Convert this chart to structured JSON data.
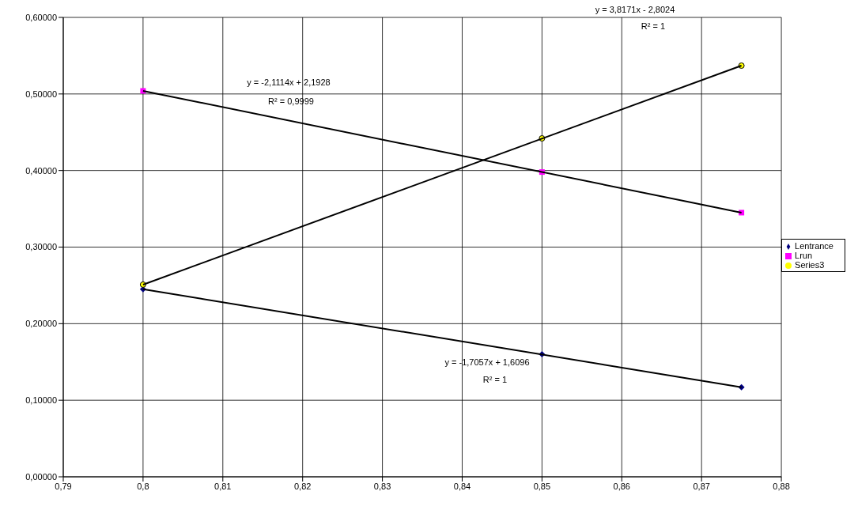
{
  "chart_data": {
    "type": "scatter",
    "xlim": [
      0.79,
      0.88
    ],
    "xticks": [
      {
        "value": 0.79,
        "label": "0,79"
      },
      {
        "value": 0.8,
        "label": "0,8"
      },
      {
        "value": 0.81,
        "label": "0,81"
      },
      {
        "value": 0.82,
        "label": "0,82"
      },
      {
        "value": 0.83,
        "label": "0,83"
      },
      {
        "value": 0.84,
        "label": "0,84"
      },
      {
        "value": 0.85,
        "label": "0,85"
      },
      {
        "value": 0.86,
        "label": "0,86"
      },
      {
        "value": 0.87,
        "label": "0,87"
      },
      {
        "value": 0.88,
        "label": "0,88"
      }
    ],
    "ylim": [
      0,
      0.6
    ],
    "yticks": [
      {
        "value": 0,
        "label": "0,00000"
      },
      {
        "value": 0.1,
        "label": "0,10000"
      },
      {
        "value": 0.2,
        "label": "0,20000"
      },
      {
        "value": 0.3,
        "label": "0,30000"
      },
      {
        "value": 0.4,
        "label": "0,40000"
      },
      {
        "value": 0.5,
        "label": "0,50000"
      },
      {
        "value": 0.6,
        "label": "0,60000"
      }
    ],
    "grid": true,
    "legend": "right",
    "series": [
      {
        "name": "Lentrance",
        "color": "#000080",
        "marker": "diamond",
        "x": [
          0.8,
          0.85,
          0.875
        ],
        "values": [
          0.245,
          0.16,
          0.117
        ]
      },
      {
        "name": "Lrun",
        "color": "#ff00ff",
        "marker": "square",
        "x": [
          0.8,
          0.85,
          0.875
        ],
        "values": [
          0.504,
          0.398,
          0.345
        ]
      },
      {
        "name": "Series3",
        "color": "#ffff00",
        "marker": "circle",
        "x": [
          0.8,
          0.85,
          0.875
        ],
        "values": [
          0.251,
          0.442,
          0.537
        ]
      },
      {
        "type": "line",
        "color": "#000000",
        "marker": "none",
        "x": [
          0.8,
          0.875
        ],
        "values": [
          0.245,
          0.117
        ]
      },
      {
        "type": "line",
        "color": "#000000",
        "marker": "none",
        "x": [
          0.8,
          0.875
        ],
        "values": [
          0.504,
          0.345
        ]
      },
      {
        "type": "line",
        "color": "#000000",
        "marker": "none",
        "x": [
          0.8,
          0.875
        ],
        "values": [
          0.251,
          0.537
        ]
      }
    ],
    "annotations": [
      "y = -2,1114x + 2,1928",
      "R² = 0,9999",
      "y = 3,8171x - 2,8024",
      "R² = 1",
      "y = -1,7057x + 1,6096",
      "R² = 1"
    ]
  }
}
